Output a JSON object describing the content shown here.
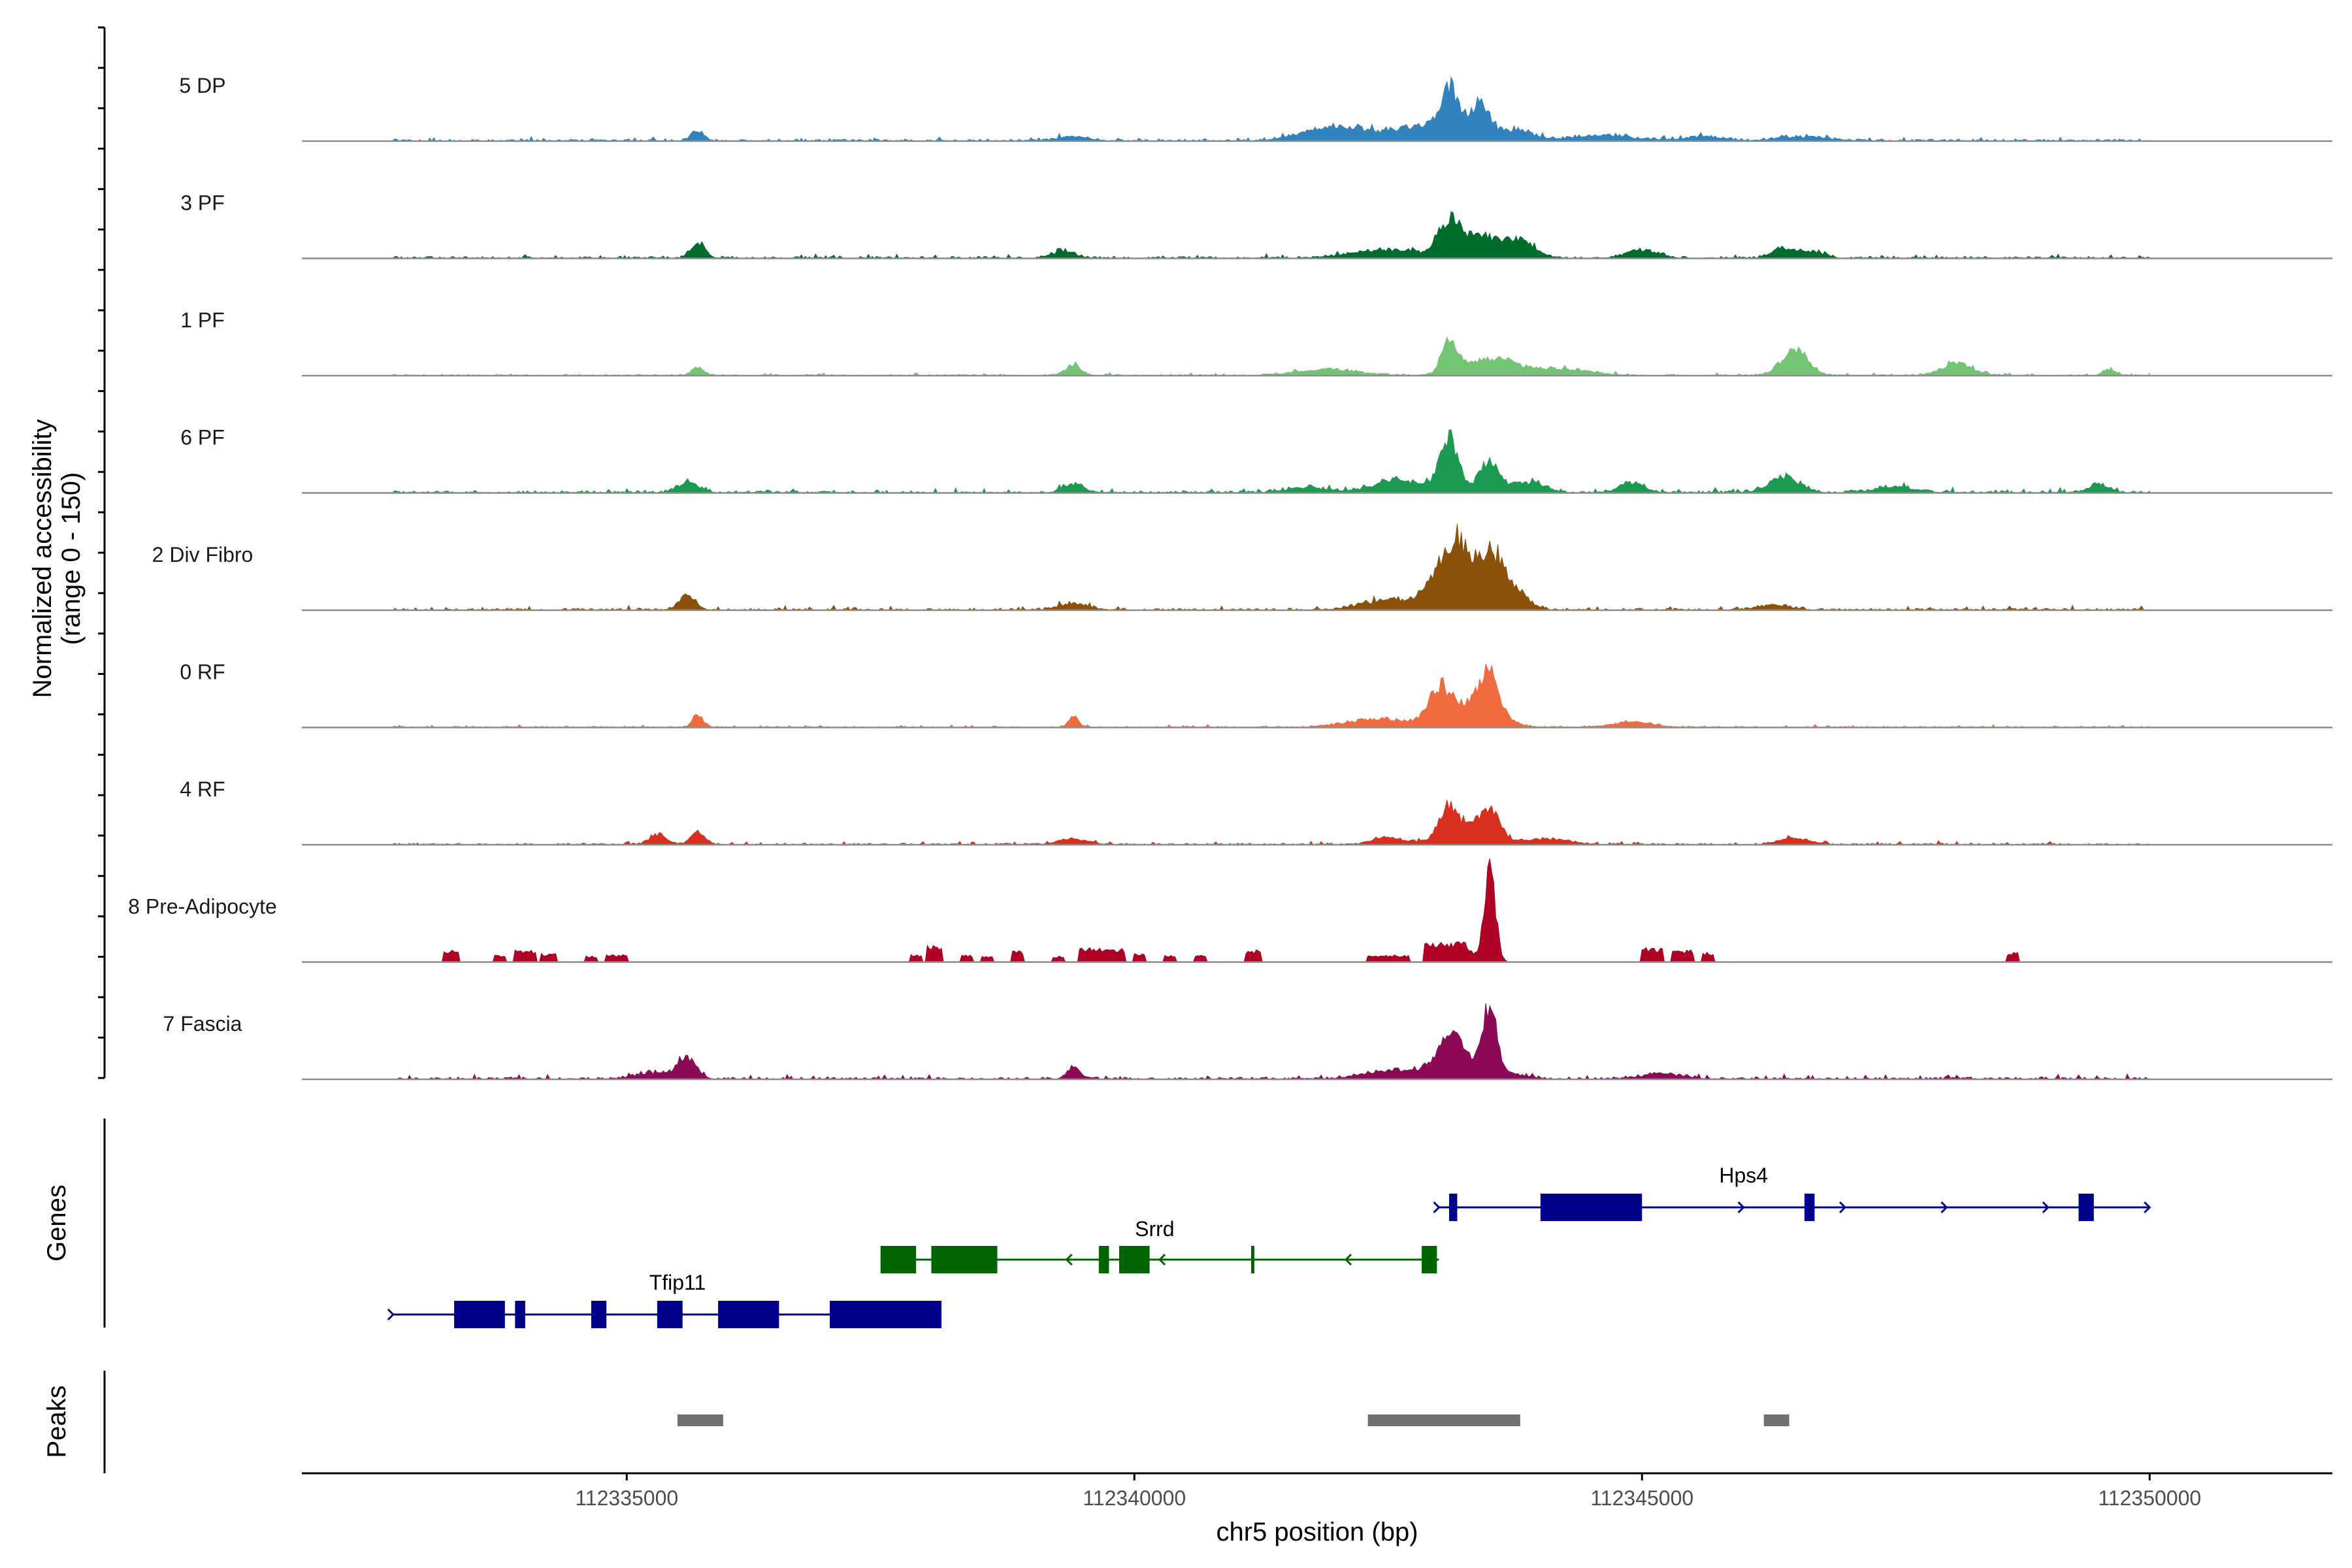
{
  "chart_data": {
    "type": "coverage-track",
    "ylabel_line1": "Normalized accessibility",
    "ylabel_line2": "(range 0 - 150)",
    "xlabel": "chr5 position (bp)",
    "xlim": [
      112331800,
      112351800
    ],
    "x_ticks": [
      112335000,
      112340000,
      112345000,
      112350000
    ],
    "x_tick_labels": [
      "112335000",
      "112340000",
      "112345000",
      "112350000"
    ],
    "data_range": [
      112332700,
      112350000
    ],
    "tracks": [
      {
        "name": "5 DP",
        "color": "#3182BD",
        "noise": 0.03,
        "peaks": [
          [
            112335700,
            0.1,
            60
          ],
          [
            112339400,
            0.04,
            150
          ],
          [
            112341800,
            0.06,
            250
          ],
          [
            112342100,
            0.09,
            300
          ],
          [
            112343100,
            0.42,
            80
          ],
          [
            112343400,
            0.28,
            90
          ],
          [
            112342900,
            0.15,
            300
          ],
          [
            112343700,
            0.1,
            200
          ],
          [
            112344600,
            0.05,
            300
          ],
          [
            112345600,
            0.04,
            200
          ],
          [
            112346600,
            0.04,
            250
          ]
        ]
      },
      {
        "name": "3 PF",
        "color": "#006D2C",
        "noise": 0.03,
        "peaks": [
          [
            112335700,
            0.15,
            70
          ],
          [
            112339300,
            0.06,
            120
          ],
          [
            112342500,
            0.08,
            350
          ],
          [
            112343100,
            0.3,
            100
          ],
          [
            112343400,
            0.2,
            200
          ],
          [
            112343800,
            0.14,
            150
          ],
          [
            112345000,
            0.08,
            150
          ],
          [
            112346400,
            0.1,
            120
          ],
          [
            112346700,
            0.06,
            100
          ]
        ]
      },
      {
        "name": "1 PF",
        "color": "#74C476",
        "noise": 0.02,
        "peaks": [
          [
            112335700,
            0.08,
            60
          ],
          [
            112339400,
            0.1,
            80
          ],
          [
            112341900,
            0.06,
            300
          ],
          [
            112343100,
            0.35,
            70
          ],
          [
            112343500,
            0.16,
            250
          ],
          [
            112344200,
            0.06,
            300
          ],
          [
            112346500,
            0.25,
            130
          ],
          [
            112348100,
            0.12,
            150
          ],
          [
            112349600,
            0.06,
            60
          ]
        ]
      },
      {
        "name": "6 PF",
        "color": "#1D9A51",
        "noise": 0.035,
        "peaks": [
          [
            112335600,
            0.1,
            100
          ],
          [
            112339400,
            0.08,
            100
          ],
          [
            112341700,
            0.05,
            200
          ],
          [
            112342600,
            0.12,
            250
          ],
          [
            112343100,
            0.5,
            90
          ],
          [
            112343500,
            0.3,
            100
          ],
          [
            112343900,
            0.1,
            150
          ],
          [
            112344900,
            0.1,
            120
          ],
          [
            112346400,
            0.15,
            150
          ],
          [
            112347500,
            0.05,
            200
          ],
          [
            112349500,
            0.08,
            100
          ]
        ]
      },
      {
        "name": "2 Div Fibro",
        "color": "#8C510A",
        "noise": 0.03,
        "peaks": [
          [
            112335600,
            0.14,
            80
          ],
          [
            112339400,
            0.06,
            150
          ],
          [
            112342500,
            0.1,
            250
          ],
          [
            112343000,
            0.3,
            150
          ],
          [
            112343200,
            0.55,
            120
          ],
          [
            112343500,
            0.48,
            120
          ],
          [
            112343700,
            0.2,
            150
          ],
          [
            112346300,
            0.05,
            150
          ]
        ]
      },
      {
        "name": "0 RF",
        "color": "#F16B3F",
        "noise": 0.02,
        "peaks": [
          [
            112335700,
            0.12,
            50
          ],
          [
            112339400,
            0.1,
            50
          ],
          [
            112342400,
            0.08,
            300
          ],
          [
            112343000,
            0.28,
            100
          ],
          [
            112343500,
            0.4,
            90
          ],
          [
            112343300,
            0.22,
            250
          ],
          [
            112344900,
            0.05,
            200
          ]
        ]
      },
      {
        "name": "4 RF",
        "color": "#D7301F",
        "noise": 0.025,
        "peaks": [
          [
            112335300,
            0.1,
            80
          ],
          [
            112335700,
            0.12,
            70
          ],
          [
            112339400,
            0.05,
            150
          ],
          [
            112342500,
            0.06,
            150
          ],
          [
            112343100,
            0.28,
            100
          ],
          [
            112343500,
            0.25,
            100
          ],
          [
            112343300,
            0.12,
            250
          ],
          [
            112344100,
            0.05,
            200
          ],
          [
            112346500,
            0.06,
            150
          ]
        ]
      },
      {
        "name": "8 Pre-Adipocyte",
        "color": "#B10026",
        "noise": 0.0,
        "blocks": [
          [
            112333200,
            112333350,
            0.1
          ],
          [
            112333700,
            112333800,
            0.06
          ],
          [
            112333900,
            112334100,
            0.1
          ],
          [
            112334150,
            112334300,
            0.07
          ],
          [
            112334600,
            112334700,
            0.05
          ],
          [
            112334800,
            112335000,
            0.06
          ],
          [
            112337800,
            112337900,
            0.06
          ],
          [
            112337950,
            112338100,
            0.14
          ],
          [
            112338300,
            112338400,
            0.06
          ],
          [
            112338500,
            112338600,
            0.05
          ],
          [
            112338800,
            112338900,
            0.09
          ],
          [
            112339200,
            112339300,
            0.05
          ],
          [
            112339450,
            112339900,
            0.12
          ],
          [
            112340000,
            112340100,
            0.07
          ],
          [
            112340300,
            112340400,
            0.06
          ],
          [
            112340600,
            112340700,
            0.06
          ],
          [
            112341100,
            112341250,
            0.1
          ],
          [
            112342300,
            112342700,
            0.06
          ],
          [
            112342850,
            112343150,
            0.16
          ],
          [
            112345000,
            112345200,
            0.12
          ],
          [
            112345300,
            112345500,
            0.1
          ],
          [
            112345600,
            112345700,
            0.08
          ],
          [
            112348600,
            112348700,
            0.08
          ]
        ],
        "peaks": [
          [
            112343500,
            0.9,
            55
          ],
          [
            112343200,
            0.22,
            90
          ]
        ]
      },
      {
        "name": "7 Fascia",
        "color": "#8C0A55",
        "noise": 0.035,
        "peaks": [
          [
            112335600,
            0.18,
            90
          ],
          [
            112335300,
            0.06,
            200
          ],
          [
            112339400,
            0.12,
            60
          ],
          [
            112342500,
            0.08,
            250
          ],
          [
            112343100,
            0.3,
            120
          ],
          [
            112343500,
            0.55,
            70
          ],
          [
            112343300,
            0.15,
            300
          ],
          [
            112345200,
            0.05,
            200
          ]
        ]
      }
    ],
    "genes": [
      {
        "name": "Hps4",
        "strand": "+",
        "color": "#00008B",
        "row": 0,
        "start": 112343000,
        "end": 112350000,
        "exons": [
          [
            112343100,
            112343180
          ],
          [
            112344000,
            112345000
          ],
          [
            112346600,
            112346700
          ],
          [
            112349300,
            112349450
          ]
        ]
      },
      {
        "name": "Srrd",
        "strand": "-",
        "color": "#006400",
        "row": 1,
        "start": 112337500,
        "end": 112343000,
        "exons": [
          [
            112337500,
            112337850
          ],
          [
            112338000,
            112338650
          ],
          [
            112339650,
            112339750
          ],
          [
            112339850,
            112340150
          ],
          [
            112341150,
            112341180
          ],
          [
            112342830,
            112342980
          ]
        ]
      },
      {
        "name": "Tfip11",
        "strand": "+",
        "color": "#00008B",
        "row": 2,
        "start": 112332700,
        "end": 112338100,
        "exons": [
          [
            112333300,
            112333800
          ],
          [
            112333900,
            112334000
          ],
          [
            112334650,
            112334800
          ],
          [
            112335300,
            112335550
          ],
          [
            112335900,
            112336500
          ],
          [
            112337000,
            112338100
          ]
        ]
      }
    ],
    "peaks_track": {
      "label": "Peaks",
      "color": "#707070",
      "regions": [
        [
          112335500,
          112335950
        ],
        [
          112342300,
          112343800
        ],
        [
          112346200,
          112346450
        ]
      ]
    },
    "genes_track_label": "Genes"
  }
}
